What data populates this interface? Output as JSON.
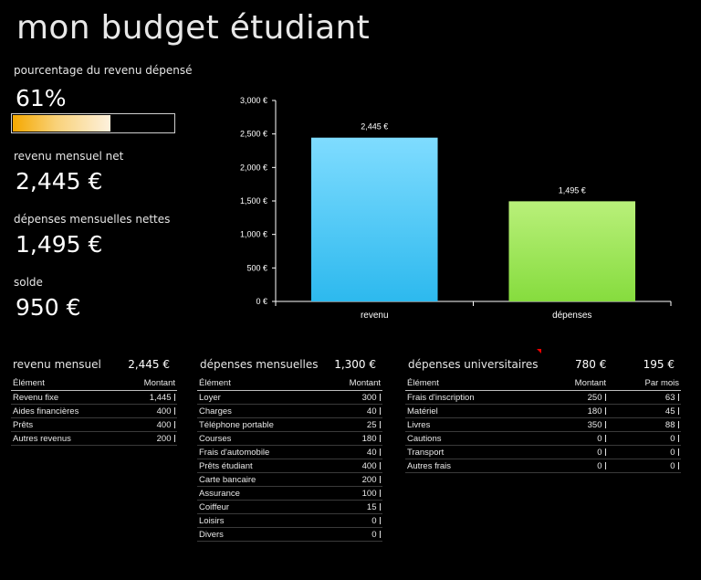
{
  "page": {
    "title": "mon budget étudiant"
  },
  "summary": {
    "pct_label": "pourcentage du revenu dépensé",
    "pct_value": "61%",
    "pct_fraction": 0.61,
    "income_label": "revenu mensuel net",
    "income_value": "2,445 €",
    "expenses_label": "dépenses mensuelles nettes",
    "expenses_value": "1,495 €",
    "balance_label": "solde",
    "balance_value": "950 €"
  },
  "chart_data": {
    "type": "bar",
    "categories": [
      "revenu",
      "dépenses"
    ],
    "values": [
      2445,
      1495
    ],
    "data_labels": [
      "2,445 €",
      "1,495 €"
    ],
    "ylim": [
      0,
      3000
    ],
    "y_ticks": [
      0,
      500,
      1000,
      1500,
      2000,
      2500,
      3000
    ],
    "y_tick_labels": [
      "0 €",
      "500 €",
      "1,000 €",
      "1,500 €",
      "2,000 €",
      "2,500 €",
      "3,000 €"
    ],
    "colors": [
      "#7fdcff",
      "#b9f07a"
    ],
    "gradient_bottom": [
      "#2db9ee",
      "#86dc3e"
    ],
    "grid": false,
    "title": "",
    "xlabel": "",
    "ylabel": ""
  },
  "income": {
    "title": "revenu mensuel",
    "total": "2,445 €",
    "col_item": "Élément",
    "col_amount": "Montant",
    "rows": [
      {
        "item": "Revenu fixe",
        "amount": "1,445"
      },
      {
        "item": "Aides financières",
        "amount": "400"
      },
      {
        "item": "Prêts",
        "amount": "400"
      },
      {
        "item": "Autres revenus",
        "amount": "200"
      }
    ]
  },
  "expenses": {
    "title": "dépenses mensuelles",
    "total": "1,300 €",
    "col_item": "Élément",
    "col_amount": "Montant",
    "rows": [
      {
        "item": "Loyer",
        "amount": "300"
      },
      {
        "item": "Charges",
        "amount": "40"
      },
      {
        "item": "Téléphone portable",
        "amount": "25"
      },
      {
        "item": "Courses",
        "amount": "180"
      },
      {
        "item": "Frais d'automobile",
        "amount": "40"
      },
      {
        "item": "Prêts étudiant",
        "amount": "400"
      },
      {
        "item": "Carte bancaire",
        "amount": "200"
      },
      {
        "item": "Assurance",
        "amount": "100"
      },
      {
        "item": "Coiffeur",
        "amount": "15"
      },
      {
        "item": "Loisirs",
        "amount": "0"
      },
      {
        "item": "Divers",
        "amount": "0"
      }
    ]
  },
  "university": {
    "title": "dépenses universitaires",
    "total": "780 €",
    "per_month_total": "195 €",
    "col_item": "Élément",
    "col_amount": "Montant",
    "col_month": "Par mois",
    "rows": [
      {
        "item": "Frais d'inscription",
        "amount": "250",
        "month": "63"
      },
      {
        "item": "Matériel",
        "amount": "180",
        "month": "45"
      },
      {
        "item": "Livres",
        "amount": "350",
        "month": "88"
      },
      {
        "item": "Cautions",
        "amount": "0",
        "month": "0"
      },
      {
        "item": "Transport",
        "amount": "0",
        "month": "0"
      },
      {
        "item": "Autres frais",
        "amount": "0",
        "month": "0"
      }
    ]
  }
}
